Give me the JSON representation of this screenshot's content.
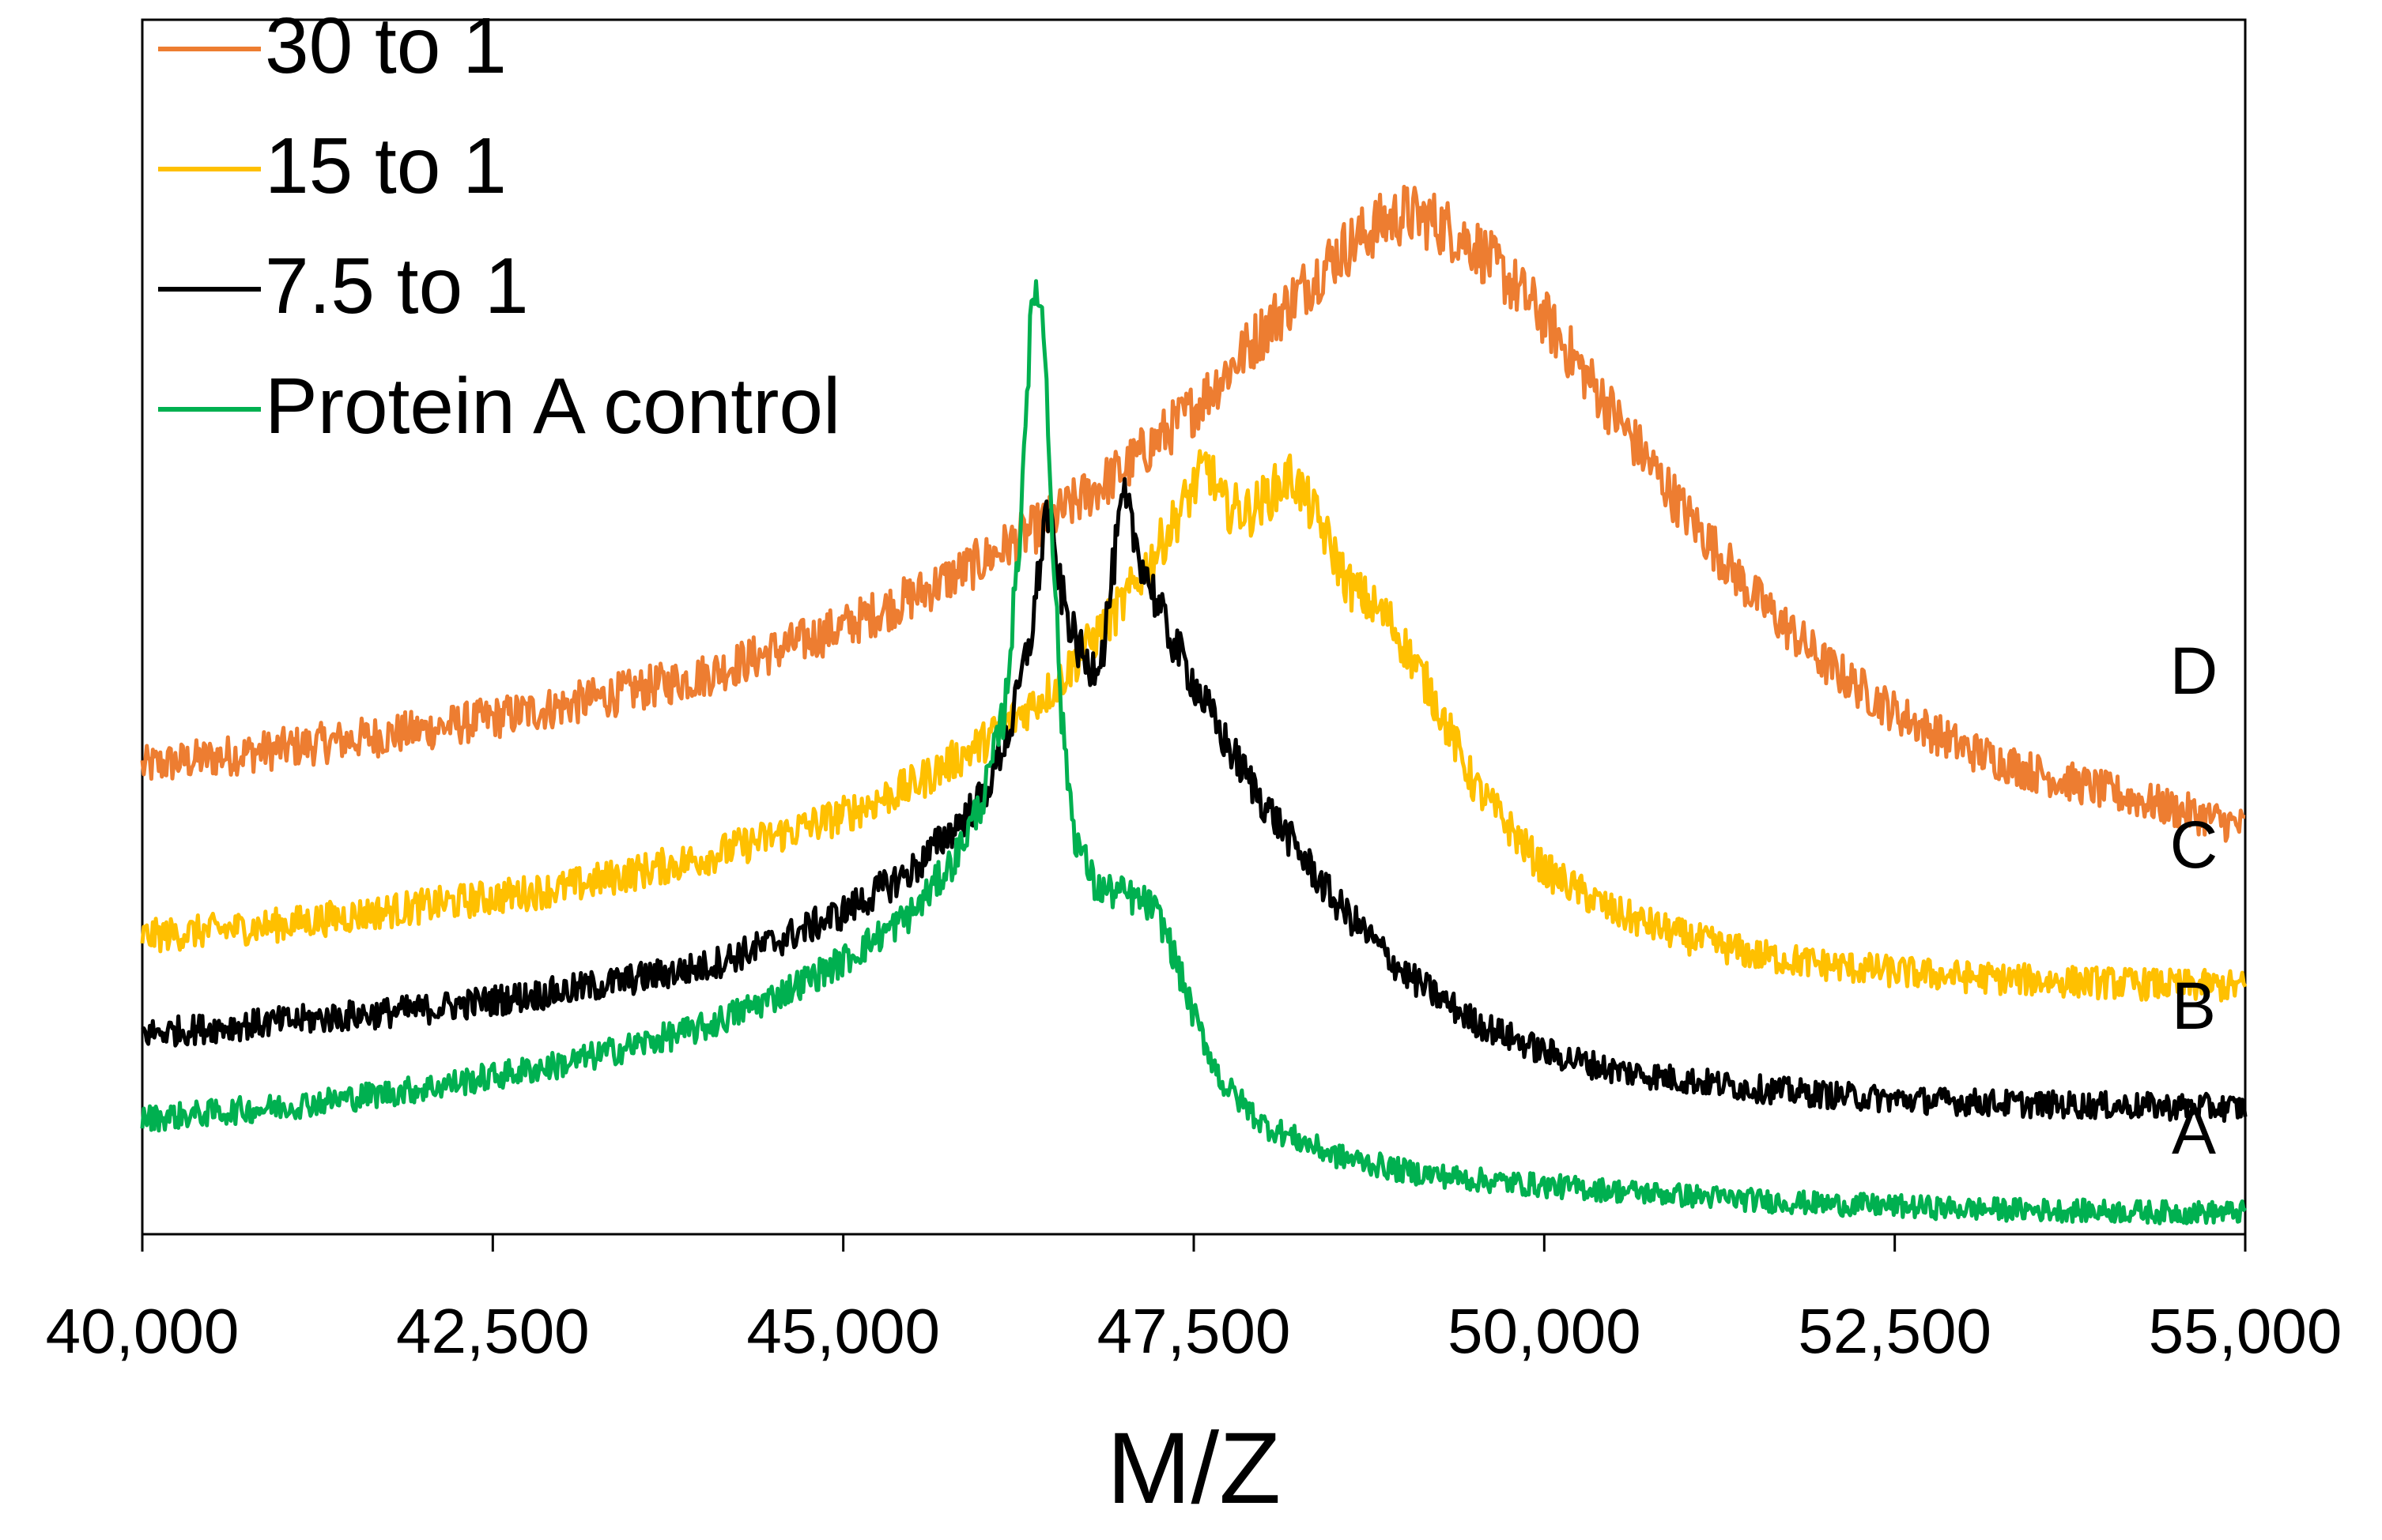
{
  "chart_data": {
    "type": "line",
    "title": "",
    "xlabel": "M/Z",
    "ylabel": "",
    "xlim": [
      40000,
      55000
    ],
    "ylim": [
      0,
      100
    ],
    "xticks": [
      40000,
      42500,
      45000,
      47500,
      50000,
      52500,
      55000
    ],
    "xtick_labels": [
      "40,000",
      "42,500",
      "45,000",
      "47,500",
      "50,000",
      "52,500",
      "55,000"
    ],
    "y_axis_visible": false,
    "grid": false,
    "legend_position": "top-left",
    "series": [
      {
        "name": "30 to 1",
        "label": "D",
        "color": "#ED7D31",
        "x": [
          40000,
          41000,
          42000,
          43000,
          44000,
          45000,
          45500,
          46000,
          46500,
          47000,
          47500,
          48000,
          48500,
          48800,
          49000,
          49200,
          49500,
          50000,
          50500,
          51000,
          51500,
          52000,
          52500,
          53000,
          53500,
          54000,
          54500,
          55000
        ],
        "y": [
          38.5,
          40.0,
          41.5,
          43.5,
          46.0,
          50.0,
          52.5,
          55.5,
          59.0,
          63.0,
          68.0,
          74.5,
          80.5,
          83.0,
          84.0,
          83.5,
          81.5,
          75.5,
          67.5,
          59.5,
          52.5,
          47.0,
          43.0,
          40.0,
          38.0,
          36.5,
          35.0,
          33.5
        ]
      },
      {
        "name": "15 to 1",
        "label": "C",
        "color": "#FFC000",
        "x": [
          40000,
          41000,
          42000,
          43000,
          44000,
          45000,
          45500,
          46000,
          46500,
          47000,
          47300,
          47600,
          47700,
          47900,
          48200,
          48400,
          48600,
          48900,
          49200,
          49500,
          50000,
          50500,
          51000,
          51500,
          52000,
          52500,
          53000,
          53500,
          54000,
          54500,
          55000
        ],
        "y": [
          24.5,
          25.5,
          27.0,
          28.5,
          31.0,
          34.5,
          37.0,
          40.5,
          45.0,
          52.0,
          57.5,
          63.5,
          60.0,
          59.5,
          62.5,
          58.5,
          53.5,
          50.5,
          44.5,
          37.0,
          30.0,
          26.5,
          24.5,
          23.0,
          22.2,
          21.6,
          21.2,
          20.9,
          20.7,
          20.5,
          20.4
        ]
      },
      {
        "name": "7.5 to 1",
        "label": "B",
        "color": "#000000",
        "x": [
          40000,
          41000,
          42000,
          43000,
          44000,
          44500,
          45000,
          45500,
          46000,
          46200,
          46350,
          46450,
          46550,
          46650,
          46750,
          46850,
          46950,
          47000,
          47100,
          47300,
          47500,
          47700,
          48000,
          48500,
          49000,
          49500,
          50000,
          50500,
          51000,
          51500,
          52000,
          52500,
          53000,
          53500,
          54000,
          54500,
          55000
        ],
        "y": [
          16.5,
          17.5,
          18.5,
          20.0,
          22.0,
          24.0,
          26.5,
          30.0,
          36.0,
          42.0,
          50.0,
          60.0,
          53.0,
          49.0,
          46.5,
          48.0,
          57.0,
          60.5,
          56.5,
          50.0,
          45.5,
          41.0,
          35.5,
          27.5,
          21.5,
          17.5,
          15.0,
          13.5,
          12.7,
          12.0,
          11.5,
          11.1,
          10.9,
          10.7,
          10.6,
          10.5,
          10.4
        ]
      },
      {
        "name": "Protein A control",
        "label": "A",
        "color": "#00B050",
        "x": [
          40000,
          41000,
          42000,
          43000,
          44000,
          44500,
          45000,
          45500,
          45800,
          46000,
          46150,
          46250,
          46320,
          46380,
          46440,
          46500,
          46560,
          46650,
          46800,
          47000,
          47200,
          47300,
          47500,
          47700,
          48000,
          48500,
          49000,
          49500,
          50000,
          50500,
          51000,
          51500,
          52000,
          52500,
          53000,
          53500,
          54000,
          54500,
          55000
        ],
        "y": [
          9.5,
          10.5,
          12.0,
          14.0,
          17.0,
          19.5,
          22.5,
          26.5,
          31.0,
          36.0,
          43.0,
          56.0,
          72.0,
          79.0,
          73.0,
          56.0,
          42.0,
          33.0,
          28.5,
          28.0,
          27.0,
          25.0,
          18.0,
          12.5,
          9.0,
          6.5,
          5.2,
          4.5,
          4.0,
          3.6,
          3.2,
          2.8,
          2.5,
          2.3,
          2.1,
          2.0,
          1.9,
          1.8,
          1.8
        ]
      }
    ]
  }
}
